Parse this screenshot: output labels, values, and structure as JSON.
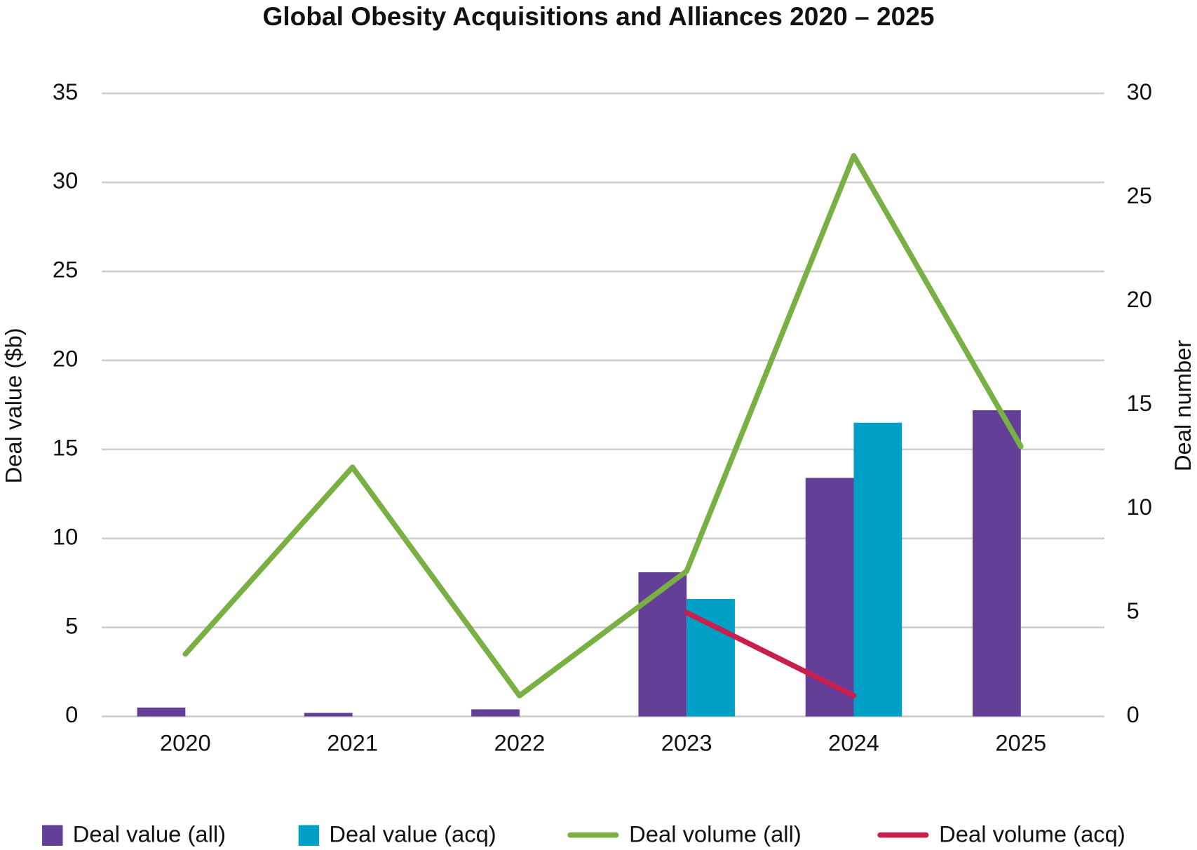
{
  "chart_data": {
    "type": "bar",
    "title": "Global Obesity Acquisitions and Alliances 2020 – 2025",
    "y_label": "Deal value ($b)",
    "y2_label": "Deal number",
    "categories": [
      "2020",
      "2021",
      "2022",
      "2023",
      "2024",
      "2025"
    ],
    "series": [
      {
        "name": "Deal value (all)",
        "type": "bar",
        "color": "#633f97",
        "values": [
          0.5,
          0.2,
          0.4,
          8.1,
          13.4,
          17.2
        ]
      },
      {
        "name": "Deal value (acq)",
        "type": "bar",
        "color": "#00a0c6",
        "values": [
          null,
          null,
          null,
          6.6,
          16.5,
          null
        ]
      },
      {
        "name": "Deal volume (all)",
        "type": "line",
        "axis": "y2",
        "color": "#78b043",
        "values": [
          3,
          12,
          1,
          7,
          27,
          13
        ]
      },
      {
        "name": "Deal volume (acq)",
        "type": "line",
        "axis": "y2",
        "color": "#c8204e",
        "values": [
          null,
          null,
          null,
          5,
          1,
          null
        ]
      }
    ],
    "ylim": [
      0,
      35
    ],
    "yticks": [
      0,
      5,
      10,
      15,
      20,
      25,
      30,
      35
    ],
    "y2lim": [
      0,
      30
    ],
    "y2ticks": [
      0,
      5,
      10,
      15,
      20,
      25,
      30
    ],
    "grid": true,
    "legend": "bottom"
  }
}
